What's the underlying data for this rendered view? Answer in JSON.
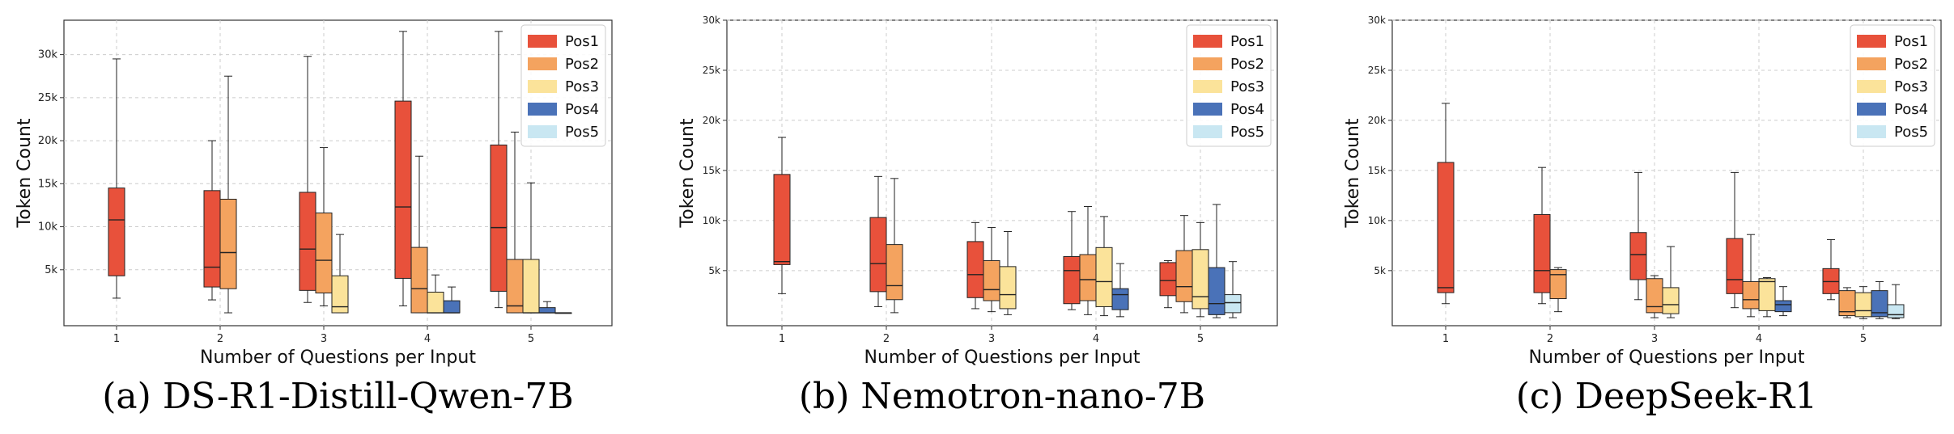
{
  "chart_data": [
    {
      "type": "boxplot",
      "caption": "(a) DS-R1-Distill-Qwen-7B",
      "xlabel": "Number of Questions per Input",
      "ylabel": "Token Count",
      "categories": [
        "1",
        "2",
        "3",
        "4",
        "5"
      ],
      "ylim": [
        -1500,
        34000
      ],
      "yticks": [
        5000,
        10000,
        15000,
        20000,
        25000,
        30000
      ],
      "ytick_labels": [
        "5k",
        "10k",
        "15k",
        "20k",
        "25k",
        "30k"
      ],
      "legend": [
        "Pos1",
        "Pos2",
        "Pos3",
        "Pos4",
        "Pos5"
      ],
      "boxes": [
        {
          "group": "1",
          "series": "Pos1",
          "whislo": 1700,
          "q1": 4300,
          "med": 10800,
          "q3": 14500,
          "whishi": 29500
        },
        {
          "group": "2",
          "series": "Pos1",
          "whislo": 1500,
          "q1": 3000,
          "med": 5300,
          "q3": 14200,
          "whishi": 20000
        },
        {
          "group": "2",
          "series": "Pos2",
          "whislo": 0,
          "q1": 2800,
          "med": 7000,
          "q3": 13200,
          "whishi": 27500
        },
        {
          "group": "3",
          "series": "Pos1",
          "whislo": 1200,
          "q1": 2600,
          "med": 7400,
          "q3": 14000,
          "whishi": 29800
        },
        {
          "group": "3",
          "series": "Pos2",
          "whislo": 800,
          "q1": 2300,
          "med": 6100,
          "q3": 11600,
          "whishi": 19200
        },
        {
          "group": "3",
          "series": "Pos3",
          "whislo": 0,
          "q1": 0,
          "med": 700,
          "q3": 4300,
          "whishi": 9100
        },
        {
          "group": "4",
          "series": "Pos1",
          "whislo": 800,
          "q1": 4000,
          "med": 12300,
          "q3": 24600,
          "whishi": 32700
        },
        {
          "group": "4",
          "series": "Pos2",
          "whislo": 0,
          "q1": 0,
          "med": 2800,
          "q3": 7600,
          "whishi": 18200
        },
        {
          "group": "4",
          "series": "Pos3",
          "whislo": 0,
          "q1": 0,
          "med": 0,
          "q3": 2400,
          "whishi": 4400
        },
        {
          "group": "4",
          "series": "Pos4",
          "whislo": 0,
          "q1": 0,
          "med": 0,
          "q3": 1400,
          "whishi": 3000
        },
        {
          "group": "5",
          "series": "Pos1",
          "whislo": 600,
          "q1": 2500,
          "med": 9900,
          "q3": 19500,
          "whishi": 32700
        },
        {
          "group": "5",
          "series": "Pos2",
          "whislo": 0,
          "q1": 0,
          "med": 800,
          "q3": 6200,
          "whishi": 21000
        },
        {
          "group": "5",
          "series": "Pos3",
          "whislo": 0,
          "q1": 0,
          "med": 0,
          "q3": 6200,
          "whishi": 15100
        },
        {
          "group": "5",
          "series": "Pos4",
          "whislo": 0,
          "q1": 0,
          "med": 0,
          "q3": 600,
          "whishi": 1300
        },
        {
          "group": "5",
          "series": "Pos5",
          "whislo": 0,
          "q1": 0,
          "med": 0,
          "q3": 0,
          "whishi": 0
        }
      ]
    },
    {
      "type": "boxplot",
      "caption": "(b) Nemotron-nano-7B",
      "xlabel": "Number of Questions per Input",
      "ylabel": "Token Count",
      "categories": [
        "1",
        "2",
        "3",
        "4",
        "5"
      ],
      "ylim": [
        -500,
        30000
      ],
      "yticks": [
        5000,
        10000,
        15000,
        20000,
        25000,
        30000
      ],
      "ytick_labels": [
        "5k",
        "10k",
        "15k",
        "20k",
        "25k",
        "30k"
      ],
      "legend": [
        "Pos1",
        "Pos2",
        "Pos3",
        "Pos4",
        "Pos5"
      ],
      "boxes": [
        {
          "group": "1",
          "series": "Pos1",
          "whislo": 2700,
          "q1": 5600,
          "med": 5900,
          "q3": 14600,
          "whishi": 18300
        },
        {
          "group": "2",
          "series": "Pos1",
          "whislo": 1400,
          "q1": 2900,
          "med": 5700,
          "q3": 10300,
          "whishi": 14400
        },
        {
          "group": "2",
          "series": "Pos2",
          "whislo": 800,
          "q1": 2100,
          "med": 3500,
          "q3": 7600,
          "whishi": 14200
        },
        {
          "group": "3",
          "series": "Pos1",
          "whislo": 1200,
          "q1": 2300,
          "med": 4600,
          "q3": 7900,
          "whishi": 9800
        },
        {
          "group": "3",
          "series": "Pos2",
          "whislo": 900,
          "q1": 2000,
          "med": 3100,
          "q3": 6000,
          "whishi": 9300
        },
        {
          "group": "3",
          "series": "Pos3",
          "whislo": 600,
          "q1": 1200,
          "med": 2600,
          "q3": 5400,
          "whishi": 8900
        },
        {
          "group": "4",
          "series": "Pos1",
          "whislo": 1100,
          "q1": 1700,
          "med": 5000,
          "q3": 6400,
          "whishi": 10900
        },
        {
          "group": "4",
          "series": "Pos2",
          "whislo": 600,
          "q1": 2000,
          "med": 4100,
          "q3": 6600,
          "whishi": 11400
        },
        {
          "group": "4",
          "series": "Pos3",
          "whislo": 500,
          "q1": 1400,
          "med": 3900,
          "q3": 7300,
          "whishi": 10400
        },
        {
          "group": "4",
          "series": "Pos4",
          "whislo": 400,
          "q1": 1100,
          "med": 2600,
          "q3": 3200,
          "whishi": 5700
        },
        {
          "group": "5",
          "series": "Pos1",
          "whislo": 1300,
          "q1": 2500,
          "med": 4000,
          "q3": 5800,
          "whishi": 6000
        },
        {
          "group": "5",
          "series": "Pos2",
          "whislo": 800,
          "q1": 1900,
          "med": 3400,
          "q3": 7000,
          "whishi": 10500
        },
        {
          "group": "5",
          "series": "Pos3",
          "whislo": 400,
          "q1": 1200,
          "med": 2400,
          "q3": 7100,
          "whishi": 9800
        },
        {
          "group": "5",
          "series": "Pos4",
          "whislo": 300,
          "q1": 600,
          "med": 1700,
          "q3": 5300,
          "whishi": 11600
        },
        {
          "group": "5",
          "series": "Pos5",
          "whislo": 300,
          "q1": 800,
          "med": 1800,
          "q3": 2600,
          "whishi": 5900
        }
      ]
    },
    {
      "type": "boxplot",
      "caption": "(c) DeepSeek-R1",
      "xlabel": "Number of Questions per Input",
      "ylabel": "Token Count",
      "categories": [
        "1",
        "2",
        "3",
        "4",
        "5"
      ],
      "ylim": [
        -500,
        30000
      ],
      "yticks": [
        5000,
        10000,
        15000,
        20000,
        25000,
        30000
      ],
      "ytick_labels": [
        "5k",
        "10k",
        "15k",
        "20k",
        "25k",
        "30k"
      ],
      "legend": [
        "Pos1",
        "Pos2",
        "Pos3",
        "Pos4",
        "Pos5"
      ],
      "boxes": [
        {
          "group": "1",
          "series": "Pos1",
          "whislo": 1700,
          "q1": 2800,
          "med": 3300,
          "q3": 15800,
          "whishi": 21700
        },
        {
          "group": "2",
          "series": "Pos1",
          "whislo": 1700,
          "q1": 2800,
          "med": 5000,
          "q3": 10600,
          "whishi": 15300
        },
        {
          "group": "2",
          "series": "Pos2",
          "whislo": 900,
          "q1": 2200,
          "med": 4600,
          "q3": 5100,
          "whishi": 5300
        },
        {
          "group": "3",
          "series": "Pos1",
          "whislo": 2100,
          "q1": 4100,
          "med": 6600,
          "q3": 8800,
          "whishi": 14800
        },
        {
          "group": "3",
          "series": "Pos2",
          "whislo": 300,
          "q1": 800,
          "med": 1400,
          "q3": 4200,
          "whishi": 4500
        },
        {
          "group": "3",
          "series": "Pos3",
          "whislo": 300,
          "q1": 700,
          "med": 1600,
          "q3": 3300,
          "whishi": 7400
        },
        {
          "group": "4",
          "series": "Pos1",
          "whislo": 1300,
          "q1": 2700,
          "med": 4100,
          "q3": 8200,
          "whishi": 14800
        },
        {
          "group": "4",
          "series": "Pos2",
          "whislo": 400,
          "q1": 1200,
          "med": 2100,
          "q3": 3900,
          "whishi": 8600
        },
        {
          "group": "4",
          "series": "Pos3",
          "whislo": 400,
          "q1": 1000,
          "med": 3900,
          "q3": 4200,
          "whishi": 4300
        },
        {
          "group": "4",
          "series": "Pos4",
          "whislo": 500,
          "q1": 900,
          "med": 1600,
          "q3": 2000,
          "whishi": 3400
        },
        {
          "group": "5",
          "series": "Pos1",
          "whislo": 2100,
          "q1": 2700,
          "med": 3900,
          "q3": 5200,
          "whishi": 8100
        },
        {
          "group": "5",
          "series": "Pos2",
          "whislo": 300,
          "q1": 500,
          "med": 900,
          "q3": 3000,
          "whishi": 3300
        },
        {
          "group": "5",
          "series": "Pos3",
          "whislo": 200,
          "q1": 400,
          "med": 1000,
          "q3": 2800,
          "whishi": 3400
        },
        {
          "group": "5",
          "series": "Pos4",
          "whislo": 200,
          "q1": 400,
          "med": 800,
          "q3": 3000,
          "whishi": 3900
        },
        {
          "group": "5",
          "series": "Pos5",
          "whislo": 200,
          "q1": 300,
          "med": 600,
          "q3": 1600,
          "whishi": 3600
        }
      ]
    }
  ],
  "colors": {
    "Pos1": "#e8513b",
    "Pos2": "#f4a35f",
    "Pos3": "#fbe39a",
    "Pos4": "#4a72b8",
    "Pos5": "#c9e7f2",
    "grid": "#cccccc",
    "axis": "#333333"
  }
}
